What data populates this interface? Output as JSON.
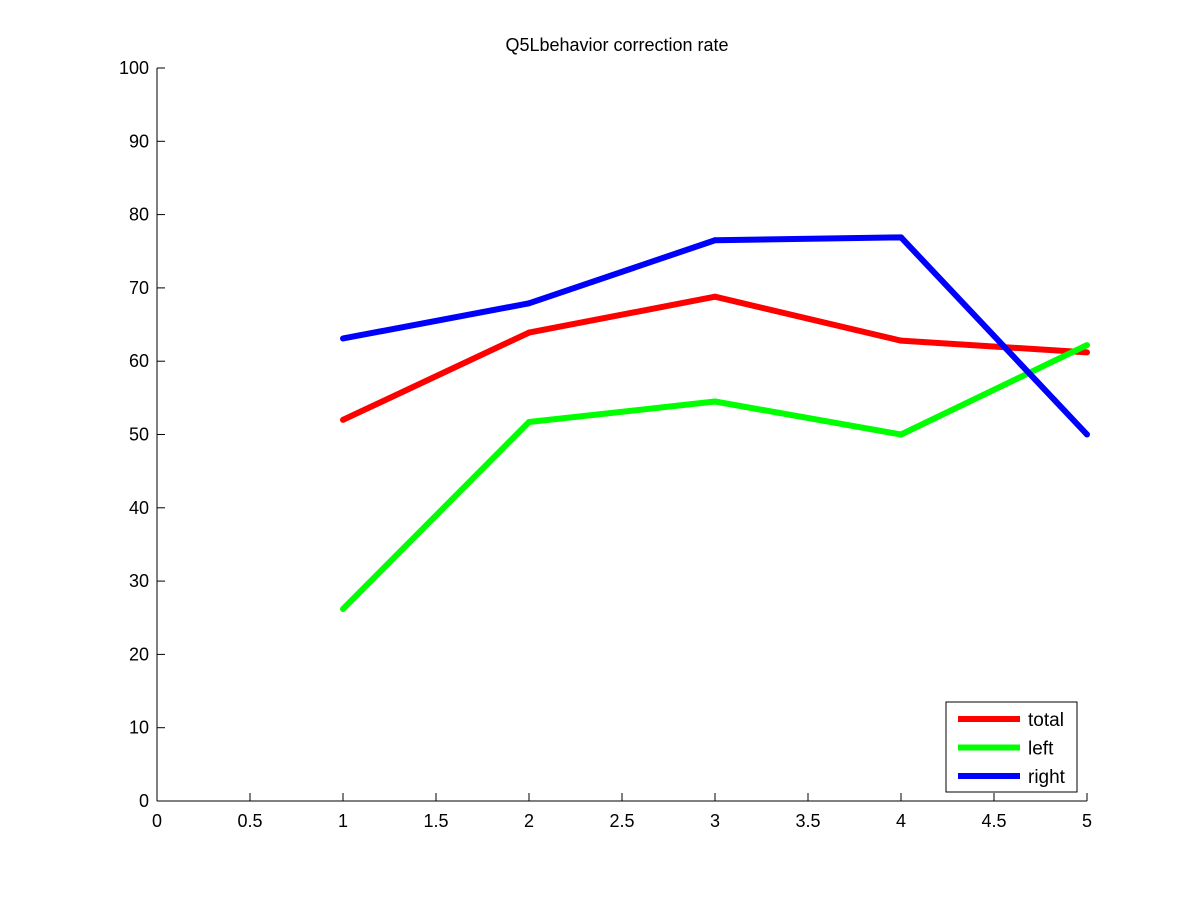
{
  "chart_data": {
    "type": "line",
    "title": "Q5Lbehavior correction rate",
    "xlabel": "",
    "ylabel": "",
    "xlim": [
      0,
      5
    ],
    "ylim": [
      0,
      100
    ],
    "x_ticks": [
      0,
      0.5,
      1,
      1.5,
      2,
      2.5,
      3,
      3.5,
      4,
      4.5,
      5
    ],
    "x_tick_labels": [
      "0",
      "0.5",
      "1",
      "1.5",
      "2",
      "2.5",
      "3",
      "3.5",
      "4",
      "4.5",
      "5"
    ],
    "y_ticks": [
      0,
      10,
      20,
      30,
      40,
      50,
      60,
      70,
      80,
      90,
      100
    ],
    "y_tick_labels": [
      "0",
      "10",
      "20",
      "30",
      "40",
      "50",
      "60",
      "70",
      "80",
      "90",
      "100"
    ],
    "grid": false,
    "legend_position": "bottom-right",
    "x": [
      1,
      2,
      3,
      4,
      5
    ],
    "series": [
      {
        "name": "total",
        "color": "#ff0000",
        "values": [
          52.0,
          63.9,
          68.8,
          62.8,
          61.2
        ]
      },
      {
        "name": "left",
        "color": "#00ff00",
        "values": [
          26.2,
          51.7,
          54.5,
          50.0,
          62.2
        ]
      },
      {
        "name": "right",
        "color": "#0000ff",
        "values": [
          63.1,
          67.9,
          76.5,
          76.9,
          50.0
        ]
      }
    ]
  }
}
